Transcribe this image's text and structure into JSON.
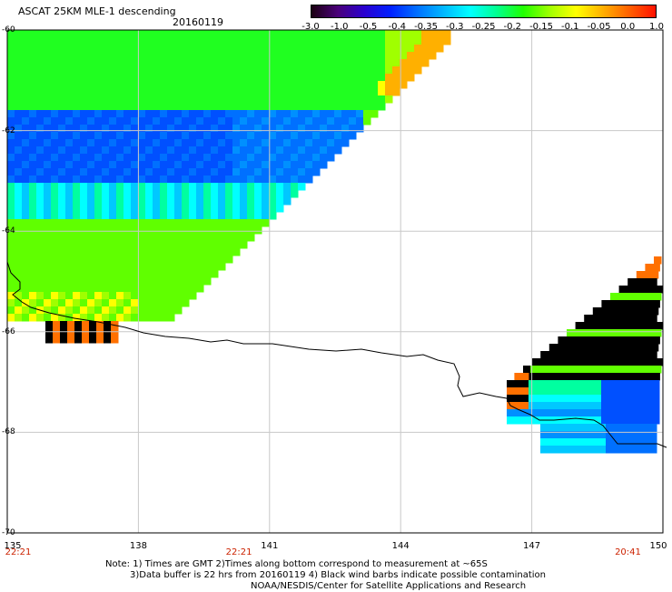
{
  "header": {
    "title": "ASCAT 25KM MLE-1 descending",
    "date": "20160119"
  },
  "colorbar": {
    "labels": [
      "-3.0",
      "-1.0",
      "-0.5",
      "-0.4",
      "-0.35",
      "-0.3",
      "-0.25",
      "-0.2",
      "-0.15",
      "-0.1",
      "-0.05",
      "0.0",
      "1.0"
    ],
    "colors": [
      "#1a0010",
      "#4a007a",
      "#2a00d0",
      "#0020ff",
      "#0070ff",
      "#00b8ff",
      "#00ffff",
      "#00ff90",
      "#20ff00",
      "#a0ff00",
      "#ffff00",
      "#ffb000",
      "#ff6000",
      "#ff1000"
    ]
  },
  "axes": {
    "lon_ticks": [
      "135",
      "138",
      "141",
      "144",
      "147",
      "150"
    ],
    "lat_ticks": [
      "-60",
      "-62",
      "-64",
      "-66",
      "-68",
      "-70"
    ],
    "time_labels": [
      {
        "text": "22:21",
        "lon": 135
      },
      {
        "text": "22:21",
        "lon": 140.3
      },
      {
        "text": "20:41",
        "lon": 149.2
      }
    ]
  },
  "notes": {
    "line1": "Note: 1) Times are GMT 2)Times along bottom correspond to measurement at ~65S",
    "line2": "3)Data buffer is 22 hrs from 20160119 4) Black wind barbs indicate possible contamination",
    "line3": "NOAA/NESDIS/Center for Satellite Applications and Research"
  }
}
